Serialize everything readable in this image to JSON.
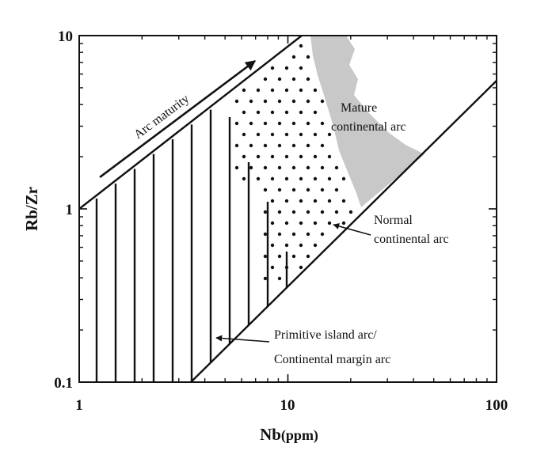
{
  "chart_data": {
    "type": "discrimination-diagram",
    "x_axis": {
      "label_main": "Nb",
      "label_unit": "(ppm)",
      "scale": "log",
      "range": [
        1,
        100
      ],
      "ticks": [
        {
          "value": 1,
          "label": "1"
        },
        {
          "value": 10,
          "label": "10"
        },
        {
          "value": 100,
          "label": "100"
        }
      ]
    },
    "y_axis": {
      "label": "Rb/Zr",
      "scale": "log",
      "range": [
        0.1,
        10
      ],
      "ticks": [
        {
          "value": 0.1,
          "label": "0.1"
        },
        {
          "value": 1,
          "label": "1"
        },
        {
          "value": 10,
          "label": "10"
        }
      ]
    },
    "boundary_lines": [
      {
        "from": [
          1,
          1
        ],
        "to": [
          12.6,
          10
        ]
      },
      {
        "from": [
          3.55,
          0.1
        ],
        "to": [
          100,
          5.6
        ]
      }
    ],
    "fields": [
      {
        "name": "primitive",
        "pattern": "vertical-lines"
      },
      {
        "name": "normal",
        "pattern": "dots"
      },
      {
        "name": "mature",
        "pattern": "gray-fill",
        "color": "#c8c8c8"
      }
    ],
    "annotations": {
      "arc_maturity": "Arc maturity",
      "mature_1": "Mature",
      "mature_2": "continental arc",
      "normal_1": "Normal",
      "normal_2": "continental arc",
      "primitive_1": "Primitive island arc/",
      "primitive_2": "Continental margin arc"
    }
  }
}
